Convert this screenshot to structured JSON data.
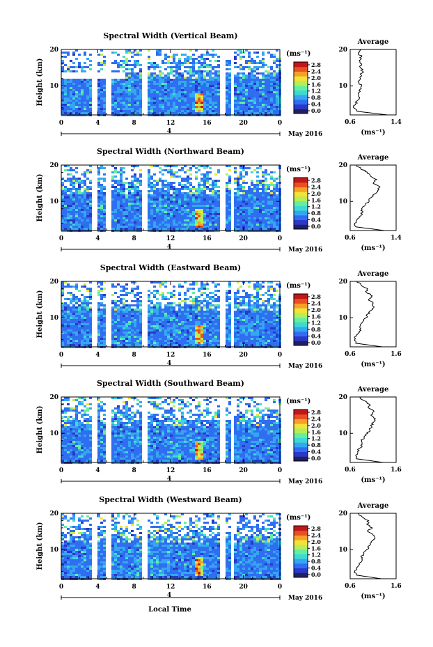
{
  "figure": {
    "xlabel": "Local Time",
    "date_label": "May 2016",
    "date_tick": "4",
    "colorbar_unit": "(ms⁻¹)",
    "colorbar_ticks": [
      "0.0",
      "0.4",
      "0.8",
      "1.2",
      "1.6",
      "2.0",
      "2.4",
      "2.8"
    ],
    "colorscale": [
      "#202060",
      "#2a37c8",
      "#2f6ef0",
      "#35a6f2",
      "#3fd9d4",
      "#66eea0",
      "#b5ee58",
      "#f2e23a",
      "#f6a028",
      "#e85020",
      "#c01818"
    ]
  },
  "chart_data": [
    {
      "type": "heatmap",
      "title": "Spectral Width (Vertical Beam)",
      "ylabel": "Height (km)",
      "xlim": [
        0,
        24
      ],
      "ylim": [
        2,
        20
      ],
      "xticks": [
        "0",
        "4",
        "8",
        "12",
        "16",
        "20",
        "0"
      ],
      "yticks": [
        "10",
        "20"
      ],
      "colorbar_range": [
        0.0,
        2.8
      ],
      "profile": {
        "title": "Average",
        "xlabel": "(ms⁻¹)",
        "xlim": [
          0.6,
          1.4
        ],
        "xticks": [
          "0.6",
          "1.4"
        ],
        "ylim": [
          2,
          20
        ],
        "yticks": [
          "10",
          "20"
        ],
        "height": [
          2,
          3,
          4,
          5,
          6,
          7,
          8,
          9,
          10,
          11,
          12,
          13,
          14,
          15,
          16,
          17,
          18,
          19,
          20
        ],
        "width": [
          1.25,
          0.72,
          0.66,
          0.69,
          0.73,
          0.75,
          0.74,
          0.77,
          0.8,
          0.75,
          0.78,
          0.79,
          0.82,
          0.78,
          0.8,
          0.76,
          0.8,
          0.74,
          0.79
        ]
      }
    },
    {
      "type": "heatmap",
      "title": "Spectral Width (Northward Beam)",
      "ylabel": "Height (km)",
      "xlim": [
        0,
        24
      ],
      "ylim": [
        2,
        20
      ],
      "xticks": [
        "0",
        "4",
        "8",
        "12",
        "16",
        "20",
        "0"
      ],
      "yticks": [
        "10",
        "20"
      ],
      "colorbar_range": [
        0.0,
        2.8
      ],
      "profile": {
        "title": "Average",
        "xlabel": "(ms⁻¹)",
        "xlim": [
          0.6,
          1.4
        ],
        "xticks": [
          "0.6",
          "1.4"
        ],
        "ylim": [
          2,
          20
        ],
        "yticks": [
          "10",
          "20"
        ],
        "height": [
          2,
          3,
          4,
          5,
          6,
          7,
          8,
          9,
          10,
          11,
          12,
          13,
          14,
          15,
          16,
          17,
          18,
          19,
          20
        ],
        "width": [
          1.2,
          0.7,
          0.68,
          0.72,
          0.78,
          0.82,
          0.8,
          0.86,
          0.93,
          0.96,
          1.02,
          1.08,
          1.12,
          1.0,
          1.06,
          0.95,
          0.9,
          0.78,
          0.7
        ]
      }
    },
    {
      "type": "heatmap",
      "title": "Spectral Width (Eastward Beam)",
      "ylabel": "Height (km)",
      "xlim": [
        0,
        24
      ],
      "ylim": [
        2,
        20
      ],
      "xticks": [
        "0",
        "4",
        "8",
        "12",
        "16",
        "20",
        "0"
      ],
      "yticks": [
        "10",
        "20"
      ],
      "colorbar_range": [
        0.0,
        2.8
      ],
      "profile": {
        "title": "Average",
        "xlabel": "(ms⁻¹)",
        "xlim": [
          0.6,
          1.6
        ],
        "xticks": [
          "0.6",
          "1.6"
        ],
        "ylim": [
          2,
          20
        ],
        "yticks": [
          "10",
          "20"
        ],
        "height": [
          2,
          3,
          4,
          5,
          6,
          7,
          8,
          9,
          10,
          11,
          12,
          13,
          14,
          15,
          16,
          17,
          18,
          19,
          20
        ],
        "width": [
          1.3,
          0.72,
          0.7,
          0.74,
          0.8,
          0.83,
          0.82,
          0.88,
          0.95,
          0.98,
          1.05,
          1.12,
          1.1,
          1.0,
          1.08,
          0.95,
          0.98,
          0.84,
          0.75
        ]
      }
    },
    {
      "type": "heatmap",
      "title": "Spectral Width (Southward Beam)",
      "ylabel": "Height (km)",
      "xlim": [
        0,
        24
      ],
      "ylim": [
        2,
        20
      ],
      "xticks": [
        "0",
        "4",
        "8",
        "12",
        "16",
        "20",
        "0"
      ],
      "yticks": [
        "10",
        "20"
      ],
      "colorbar_range": [
        0.0,
        2.8
      ],
      "profile": {
        "title": "Average",
        "xlabel": "(ms⁻¹)",
        "xlim": [
          0.6,
          1.6
        ],
        "xticks": [
          "0.6",
          "1.6"
        ],
        "ylim": [
          2,
          20
        ],
        "yticks": [
          "10",
          "20"
        ],
        "height": [
          2,
          3,
          4,
          5,
          6,
          7,
          8,
          9,
          10,
          11,
          12,
          13,
          14,
          15,
          16,
          17,
          18,
          19,
          20
        ],
        "width": [
          1.32,
          0.74,
          0.72,
          0.76,
          0.82,
          0.86,
          0.85,
          0.9,
          0.98,
          1.02,
          1.06,
          1.1,
          1.15,
          1.05,
          1.12,
          1.0,
          1.02,
          0.9,
          0.8
        ]
      }
    },
    {
      "type": "heatmap",
      "title": "Spectral Width (Westward Beam)",
      "ylabel": "Height (km)",
      "xlim": [
        0,
        24
      ],
      "ylim": [
        2,
        20
      ],
      "xticks": [
        "0",
        "4",
        "8",
        "12",
        "16",
        "20",
        "0"
      ],
      "yticks": [
        "10",
        "20"
      ],
      "colorbar_range": [
        0.0,
        2.8
      ],
      "profile": {
        "title": "Average",
        "xlabel": "(ms⁻¹)",
        "xlim": [
          0.6,
          1.6
        ],
        "xticks": [
          "0.6",
          "1.6"
        ],
        "ylim": [
          2,
          20
        ],
        "yticks": [
          "10",
          "20"
        ],
        "height": [
          2,
          3,
          4,
          5,
          6,
          7,
          8,
          9,
          10,
          11,
          12,
          13,
          14,
          15,
          16,
          17,
          18,
          19,
          20
        ],
        "width": [
          1.28,
          0.74,
          0.7,
          0.74,
          0.8,
          0.86,
          0.84,
          0.9,
          0.96,
          1.0,
          1.06,
          1.14,
          1.1,
          0.98,
          1.08,
          0.96,
          1.0,
          0.86,
          0.78
        ]
      }
    }
  ]
}
